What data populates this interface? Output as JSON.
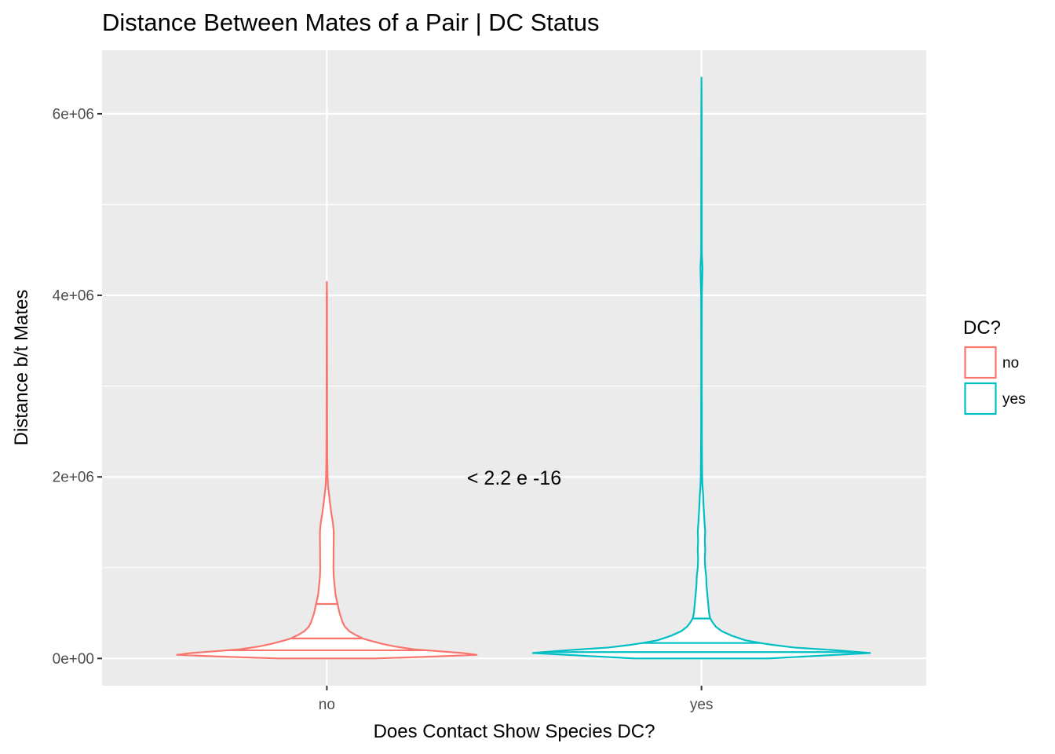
{
  "chart_data": {
    "type": "violin",
    "title": "Distance Between Mates of a Pair | DC Status",
    "xlabel": "Does Contact Show Species DC?",
    "ylabel": "Distance b/t Mates",
    "categories": [
      "no",
      "yes"
    ],
    "ylim": [
      -300000,
      6700000
    ],
    "yticks": [
      {
        "value": 0,
        "label": "0e+00"
      },
      {
        "value": 2000000,
        "label": "2e+06"
      },
      {
        "value": 4000000,
        "label": "4e+06"
      },
      {
        "value": 6000000,
        "label": "6e+06"
      }
    ],
    "grid": true,
    "legend": {
      "title": "DC?",
      "placement": "right",
      "items": [
        {
          "label": "no",
          "color": "#F8766D"
        },
        {
          "label": "yes",
          "color": "#00BFC4"
        }
      ]
    },
    "annotation": {
      "text": "< 2.2 e -16",
      "x": 1.5,
      "y": 2000000
    },
    "colors": {
      "panel": "#EBEBEB",
      "grid": "#FFFFFF",
      "no": "#F8766D",
      "yes": "#00BFC4"
    },
    "series": [
      {
        "name": "no",
        "color": "#F8766D",
        "max_width": 0.8,
        "quantiles": [
          90000,
          220000,
          600000
        ],
        "profile": [
          [
            0,
            0.32
          ],
          [
            20000,
            0.7
          ],
          [
            40000,
            1.0
          ],
          [
            60000,
            0.9
          ],
          [
            80000,
            0.74
          ],
          [
            100000,
            0.58
          ],
          [
            130000,
            0.46
          ],
          [
            160000,
            0.37
          ],
          [
            200000,
            0.28
          ],
          [
            220000,
            0.24
          ],
          [
            260000,
            0.19
          ],
          [
            300000,
            0.15
          ],
          [
            350000,
            0.12
          ],
          [
            400000,
            0.105
          ],
          [
            450000,
            0.095
          ],
          [
            500000,
            0.085
          ],
          [
            550000,
            0.078
          ],
          [
            600000,
            0.072
          ],
          [
            700000,
            0.058
          ],
          [
            800000,
            0.052
          ],
          [
            900000,
            0.046
          ],
          [
            1000000,
            0.044
          ],
          [
            1100000,
            0.045
          ],
          [
            1200000,
            0.045
          ],
          [
            1300000,
            0.046
          ],
          [
            1400000,
            0.046
          ],
          [
            1500000,
            0.04
          ],
          [
            1600000,
            0.03
          ],
          [
            1700000,
            0.022
          ],
          [
            1800000,
            0.015
          ],
          [
            1900000,
            0.008
          ],
          [
            2000000,
            0.005
          ],
          [
            2200000,
            0.003
          ],
          [
            2500000,
            0.002
          ],
          [
            3000000,
            0.0015
          ],
          [
            3500000,
            0.0012
          ],
          [
            4000000,
            0.001
          ],
          [
            4150000,
            0
          ]
        ]
      },
      {
        "name": "yes",
        "color": "#00BFC4",
        "max_width": 0.9,
        "quantiles": [
          70000,
          170000,
          440000
        ],
        "profile": [
          [
            0,
            0.4
          ],
          [
            30000,
            0.7
          ],
          [
            60000,
            1.0
          ],
          [
            90000,
            0.8
          ],
          [
            120000,
            0.55
          ],
          [
            150000,
            0.42
          ],
          [
            170000,
            0.35
          ],
          [
            200000,
            0.26
          ],
          [
            250000,
            0.18
          ],
          [
            300000,
            0.12
          ],
          [
            350000,
            0.085
          ],
          [
            400000,
            0.065
          ],
          [
            440000,
            0.052
          ],
          [
            500000,
            0.045
          ],
          [
            600000,
            0.04
          ],
          [
            700000,
            0.035
          ],
          [
            800000,
            0.03
          ],
          [
            900000,
            0.028
          ],
          [
            1000000,
            0.022
          ],
          [
            1100000,
            0.02
          ],
          [
            1200000,
            0.022
          ],
          [
            1300000,
            0.02
          ],
          [
            1400000,
            0.022
          ],
          [
            1500000,
            0.018
          ],
          [
            1600000,
            0.015
          ],
          [
            1700000,
            0.012
          ],
          [
            1800000,
            0.01
          ],
          [
            1900000,
            0.006
          ],
          [
            2000000,
            0.004
          ],
          [
            2200000,
            0.003
          ],
          [
            2500000,
            0.002
          ],
          [
            2800000,
            0.002
          ],
          [
            3000000,
            0.0015
          ],
          [
            3500000,
            0.0015
          ],
          [
            4000000,
            0.002
          ],
          [
            4150000,
            0.004
          ],
          [
            4300000,
            0.006
          ],
          [
            4450000,
            0.002
          ],
          [
            5000000,
            0.0015
          ],
          [
            6000000,
            0.001
          ],
          [
            6400000,
            0
          ]
        ]
      }
    ]
  }
}
